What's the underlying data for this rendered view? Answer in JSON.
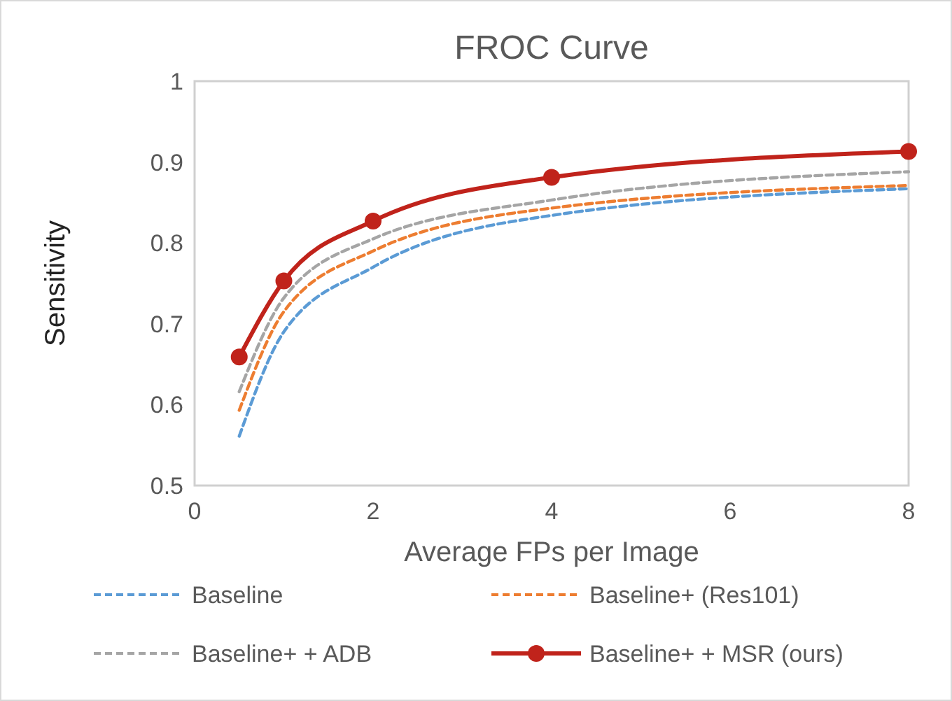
{
  "chart_data": {
    "type": "line",
    "title": "FROC Curve",
    "xlabel": "Average FPs per Image",
    "ylabel": "Sensitivity",
    "x": [
      0.5,
      1,
      2,
      4,
      8
    ],
    "series": [
      {
        "name": "Baseline",
        "color": "#5b9bd5",
        "line_style": "dashed",
        "marker": "none",
        "values": [
          0.561,
          0.69,
          0.77,
          0.834,
          0.867
        ]
      },
      {
        "name": "Baseline+ (Res101)",
        "color": "#ed7d31",
        "line_style": "dashed",
        "marker": "none",
        "values": [
          0.593,
          0.715,
          0.79,
          0.843,
          0.871
        ]
      },
      {
        "name": "Baseline+ + ADB",
        "color": "#a5a5a5",
        "line_style": "dashed",
        "marker": "none",
        "values": [
          0.616,
          0.732,
          0.805,
          0.853,
          0.888
        ]
      },
      {
        "name": "Baseline+ + MSR (ours)",
        "color": "#c0231b",
        "line_style": "solid",
        "marker": "circle",
        "values": [
          0.659,
          0.753,
          0.827,
          0.881,
          0.913
        ]
      }
    ],
    "xlim": [
      0,
      8
    ],
    "xticks": [
      0,
      2,
      4,
      6,
      8
    ],
    "ylim": [
      0.5,
      1
    ],
    "yticks": [
      0.5,
      0.6,
      0.7,
      0.8,
      0.9,
      1
    ],
    "grid": false,
    "legend": "bottom"
  }
}
